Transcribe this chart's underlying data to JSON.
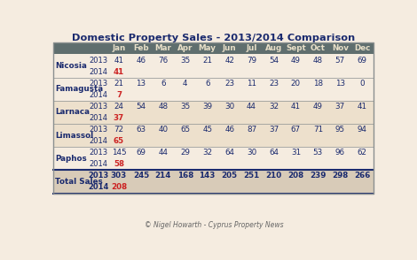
{
  "title": "Domestic Property Sales - 2013/2014 Comparison",
  "footer": "© Nigel Howarth - Cyprus Property News",
  "months": [
    "Jan",
    "Feb",
    "Mar",
    "Apr",
    "May",
    "Jun",
    "Jul",
    "Aug",
    "Sept",
    "Oct",
    "Nov",
    "Dec"
  ],
  "header_bg": "#5f6e6e",
  "header_fg": "#e8dfc8",
  "row_bg_odd": "#f5ece0",
  "row_bg_even": "#ede0cc",
  "total_bg": "#d8cbb8",
  "border_color": "#8b9090",
  "text_blue": "#1a2a6e",
  "text_red": "#cc2222",
  "regions": [
    "Nicosia",
    "Famagusta",
    "Larnaca",
    "Limassol",
    "Paphos"
  ],
  "data_2013": {
    "Nicosia": [
      41,
      46,
      76,
      35,
      21,
      42,
      79,
      54,
      49,
      48,
      57,
      69
    ],
    "Famagusta": [
      21,
      13,
      6,
      4,
      6,
      23,
      11,
      23,
      20,
      18,
      13,
      0
    ],
    "Larnaca": [
      24,
      54,
      48,
      35,
      39,
      30,
      44,
      32,
      41,
      49,
      37,
      41
    ],
    "Limassol": [
      72,
      63,
      40,
      65,
      45,
      46,
      87,
      37,
      67,
      71,
      95,
      94
    ],
    "Paphos": [
      145,
      69,
      44,
      29,
      32,
      64,
      30,
      64,
      31,
      53,
      96,
      62
    ]
  },
  "data_2014": {
    "Nicosia": [
      41
    ],
    "Famagusta": [
      7
    ],
    "Larnaca": [
      37
    ],
    "Limassol": [
      65
    ],
    "Paphos": [
      58
    ]
  },
  "total_2013": [
    303,
    245,
    214,
    168,
    143,
    205,
    251,
    210,
    208,
    239,
    298,
    266
  ],
  "total_2014": [
    208
  ],
  "row_colors": [
    "odd",
    "odd",
    "even",
    "even",
    "odd"
  ]
}
